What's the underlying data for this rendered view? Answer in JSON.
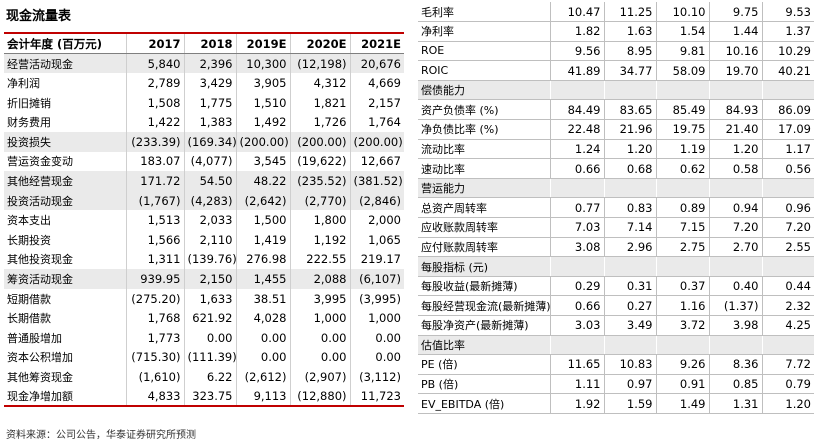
{
  "left_title": "现金流量表",
  "left_header": [
    "会计年度 (百万元)",
    "2017",
    "2018",
    "2019E",
    "2020E",
    "2021E"
  ],
  "left_rows": [
    {
      "label": "经营活动现金",
      "values": [
        "5,840",
        "2,396",
        "10,300",
        "(12,198)",
        "20,676"
      ],
      "shade": true
    },
    {
      "label": "净利润",
      "values": [
        "2,789",
        "3,429",
        "3,905",
        "4,312",
        "4,669"
      ],
      "shade": false
    },
    {
      "label": "折旧摊销",
      "values": [
        "1,508",
        "1,775",
        "1,510",
        "1,821",
        "2,157"
      ],
      "shade": false
    },
    {
      "label": "财务费用",
      "values": [
        "1,422",
        "1,383",
        "1,492",
        "1,726",
        "1,764"
      ],
      "shade": false
    },
    {
      "label": "投资损失",
      "values": [
        "(233.39)",
        "(169.34)",
        "(200.00)",
        "(200.00)",
        "(200.00)"
      ],
      "shade": true
    },
    {
      "label": "营运资金变动",
      "values": [
        "183.07",
        "(4,077)",
        "3,545",
        "(19,622)",
        "12,667"
      ],
      "shade": false
    },
    {
      "label": "其他经营现金",
      "values": [
        "171.72",
        "54.50",
        "48.22",
        "(235.52)",
        "(381.52)"
      ],
      "shade": true
    },
    {
      "label": "投资活动现金",
      "values": [
        "(1,767)",
        "(4,283)",
        "(2,642)",
        "(2,770)",
        "(2,846)"
      ],
      "shade": true
    },
    {
      "label": "资本支出",
      "values": [
        "1,513",
        "2,033",
        "1,500",
        "1,800",
        "2,000"
      ],
      "shade": false
    },
    {
      "label": "长期投资",
      "values": [
        "1,566",
        "2,110",
        "1,419",
        "1,192",
        "1,065"
      ],
      "shade": false
    },
    {
      "label": "其他投资现金",
      "values": [
        "1,311",
        "(139.76)",
        "276.98",
        "222.55",
        "219.17"
      ],
      "shade": false
    },
    {
      "label": "筹资活动现金",
      "values": [
        "939.95",
        "2,150",
        "1,455",
        "2,088",
        "(6,107)"
      ],
      "shade": true
    },
    {
      "label": "短期借款",
      "values": [
        "(275.20)",
        "1,633",
        "38.51",
        "3,995",
        "(3,995)"
      ],
      "shade": false
    },
    {
      "label": "长期借款",
      "values": [
        "1,768",
        "621.92",
        "4,028",
        "1,000",
        "1,000"
      ],
      "shade": false
    },
    {
      "label": "普通股增加",
      "values": [
        "1,773",
        "0.00",
        "0.00",
        "0.00",
        "0.00"
      ],
      "shade": false
    },
    {
      "label": "资本公积增加",
      "values": [
        "(715.30)",
        "(111.39)",
        "0.00",
        "0.00",
        "0.00"
      ],
      "shade": false
    },
    {
      "label": "其他筹资现金",
      "values": [
        "(1,610)",
        "6.22",
        "(2,612)",
        "(2,907)",
        "(3,112)"
      ],
      "shade": false
    },
    {
      "label": "现金净增加额",
      "values": [
        "4,833",
        "323.75",
        "9,113",
        "(12,880)",
        "11,723"
      ],
      "shade": false
    }
  ],
  "right_rows": [
    {
      "label": "毛利率",
      "values": [
        "10.47",
        "11.25",
        "10.10",
        "9.75",
        "9.53"
      ],
      "shade": false
    },
    {
      "label": "净利率",
      "values": [
        "1.82",
        "1.63",
        "1.54",
        "1.44",
        "1.37"
      ],
      "shade": false
    },
    {
      "label": "ROE",
      "values": [
        "9.56",
        "8.95",
        "9.81",
        "10.16",
        "10.29"
      ],
      "shade": false
    },
    {
      "label": "ROIC",
      "values": [
        "41.89",
        "34.77",
        "58.09",
        "19.70",
        "40.21"
      ],
      "shade": false
    },
    {
      "label": "偿债能力",
      "values": [
        "",
        "",
        "",
        "",
        ""
      ],
      "shade": true
    },
    {
      "label": "资产负债率 (%)",
      "values": [
        "84.49",
        "83.65",
        "85.49",
        "84.93",
        "86.09"
      ],
      "shade": false
    },
    {
      "label": "净负债比率 (%)",
      "values": [
        "22.48",
        "21.96",
        "19.75",
        "21.40",
        "17.09"
      ],
      "shade": false
    },
    {
      "label": "流动比率",
      "values": [
        "1.24",
        "1.20",
        "1.19",
        "1.20",
        "1.17"
      ],
      "shade": false
    },
    {
      "label": "速动比率",
      "values": [
        "0.66",
        "0.68",
        "0.62",
        "0.58",
        "0.56"
      ],
      "shade": false
    },
    {
      "label": "营运能力",
      "values": [
        "",
        "",
        "",
        "",
        ""
      ],
      "shade": true
    },
    {
      "label": "总资产周转率",
      "values": [
        "0.77",
        "0.83",
        "0.89",
        "0.94",
        "0.96"
      ],
      "shade": false
    },
    {
      "label": "应收账款周转率",
      "values": [
        "7.03",
        "7.14",
        "7.15",
        "7.20",
        "7.20"
      ],
      "shade": false
    },
    {
      "label": "应付账款周转率",
      "values": [
        "3.08",
        "2.96",
        "2.75",
        "2.70",
        "2.55"
      ],
      "shade": false
    },
    {
      "label": "每股指标 (元)",
      "values": [
        "",
        "",
        "",
        "",
        ""
      ],
      "shade": true
    },
    {
      "label": "每股收益(最新摊薄)",
      "values": [
        "0.29",
        "0.31",
        "0.37",
        "0.40",
        "0.44"
      ],
      "shade": false
    },
    {
      "label": "每股经营现金流(最新摊薄)",
      "values": [
        "0.66",
        "0.27",
        "1.16",
        "(1.37)",
        "2.32"
      ],
      "shade": false
    },
    {
      "label": "每股净资产(最新摊薄)",
      "values": [
        "3.03",
        "3.49",
        "3.72",
        "3.98",
        "4.25"
      ],
      "shade": false
    },
    {
      "label": "估值比率",
      "values": [
        "",
        "",
        "",
        "",
        ""
      ],
      "shade": true
    },
    {
      "label": "PE (倍)",
      "values": [
        "11.65",
        "10.83",
        "9.26",
        "8.36",
        "7.72"
      ],
      "shade": false
    },
    {
      "label": "PB (倍)",
      "values": [
        "1.11",
        "0.97",
        "0.91",
        "0.85",
        "0.79"
      ],
      "shade": false
    },
    {
      "label": "EV_EBITDA (倍)",
      "values": [
        "1.92",
        "1.59",
        "1.49",
        "1.31",
        "1.20"
      ],
      "shade": false
    }
  ],
  "source": "资料来源：公司公告，华泰证券研究所预测"
}
